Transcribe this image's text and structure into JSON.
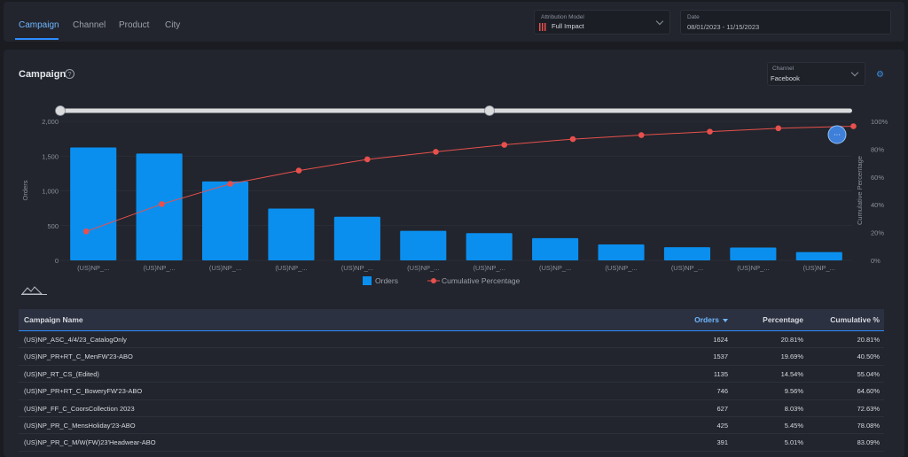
{
  "tabs": [
    {
      "label": "Campaign",
      "active": true
    },
    {
      "label": "Channel",
      "active": false
    },
    {
      "label": "Product",
      "active": false
    },
    {
      "label": "City",
      "active": false
    }
  ],
  "attribution": {
    "label": "Attribution Model",
    "value": "Full Impact"
  },
  "date": {
    "label": "Date",
    "value": "08/01/2023 - 11/15/2023"
  },
  "panel": {
    "title": "Campaign",
    "help": "?"
  },
  "channel": {
    "label": "Channel",
    "value": "Facebook"
  },
  "colors": {
    "accent": "#2e8cff",
    "bar": "#0a8fef",
    "line": "#e8504d"
  },
  "icons": {
    "help": "question-circle-icon",
    "settings": "gear-icon",
    "mountain": "mountain-chart-icon",
    "attribution": "bar-pattern-icon"
  },
  "chart_data": {
    "type": "bar",
    "categories": [
      "(US)NP_...",
      "(US)NP_...",
      "(US)NP_...",
      "(US)NP_...",
      "(US)NP_...",
      "(US)NP_...",
      "(US)NP_...",
      "(US)NP_...",
      "(US)NP_...",
      "(US)NP_...",
      "(US)NP_...",
      "(US)NP_..."
    ],
    "series": [
      {
        "name": "Orders",
        "type": "bar",
        "axis": "left",
        "values": [
          1624,
          1537,
          1135,
          746,
          627,
          425,
          391,
          320,
          230,
          190,
          185,
          120
        ]
      },
      {
        "name": "Cumulative Percentage",
        "type": "line",
        "axis": "right",
        "values": [
          20.81,
          40.5,
          55.04,
          64.6,
          72.63,
          78.08,
          83.09,
          87.2,
          90.1,
          92.6,
          95.0,
          96.5
        ]
      }
    ],
    "ylabel": "Orders",
    "y2label": "Cumulative Percentage",
    "ylim": [
      0,
      2000
    ],
    "yticks": [
      "0",
      "500",
      "1,000",
      "1,500",
      "2,000"
    ],
    "y2lim": [
      0,
      100
    ],
    "y2ticks": [
      "0%",
      "20%",
      "40%",
      "60%",
      "80%",
      "100%"
    ],
    "legend": "bottom-center",
    "grid": true
  },
  "table": {
    "headers": [
      "Campaign Name",
      "Orders",
      "Percentage",
      "Cumulative %"
    ],
    "rows": [
      [
        "(US)NP_ASC_4/4/23_CatalogOnly",
        "1624",
        "20.81%",
        "20.81%"
      ],
      [
        "(US)NP_PR+RT_C_MenFW'23-ABO",
        "1537",
        "19.69%",
        "40.50%"
      ],
      [
        "(US)NP_RT_CS_(Edited)",
        "1135",
        "14.54%",
        "55.04%"
      ],
      [
        "(US)NP_PR+RT_C_BoweryFW'23-ABO",
        "746",
        "9.56%",
        "64.60%"
      ],
      [
        "(US)NP_FF_C_CoorsCollection 2023",
        "627",
        "8.03%",
        "72.63%"
      ],
      [
        "(US)NP_PR_C_MensHoliday'23-ABO",
        "425",
        "5.45%",
        "78.08%"
      ],
      [
        "(US)NP_PR_C_M/W(FW)23'Headwear-ABO",
        "391",
        "5.01%",
        "83.09%"
      ]
    ]
  }
}
